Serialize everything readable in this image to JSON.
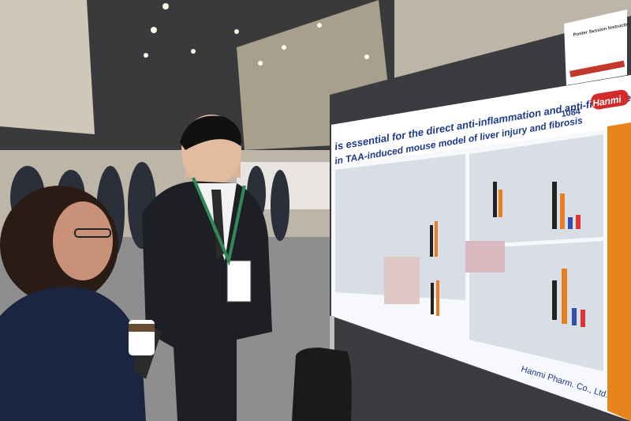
{
  "poster": {
    "title_line1": "is essential for the direct anti-inflammation and anti-fibrosis effect",
    "title_line2": "in TAA-induced mouse model of liver injury and fibrosis",
    "number": "1084",
    "logo": "Hanmi",
    "footer": "Hanmi Pharm. Co., Ltd."
  },
  "sign": {
    "title": "Poster Session Instructions"
  }
}
